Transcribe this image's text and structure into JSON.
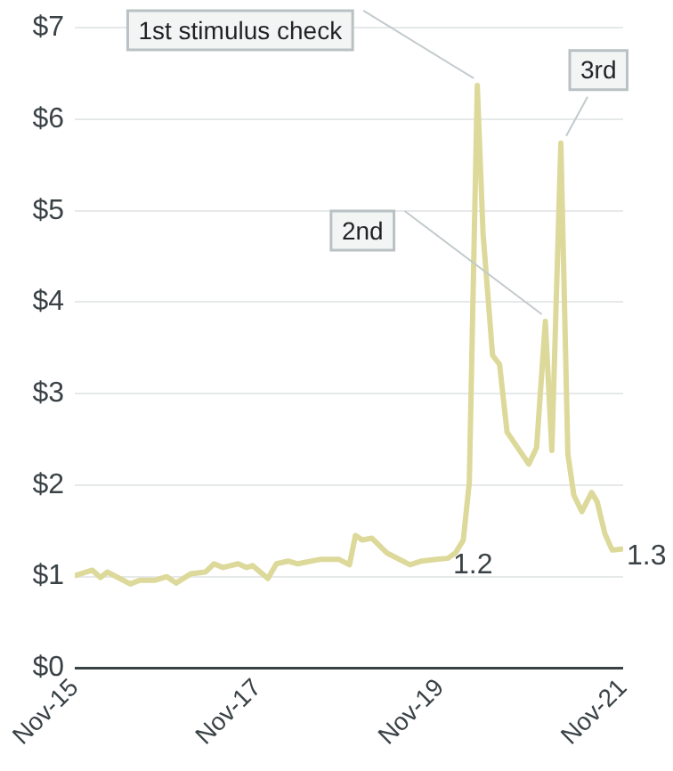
{
  "chart_data": {
    "type": "line",
    "x": [
      "2015-11-01",
      "2016-01-10",
      "2016-02-12",
      "2016-03-10",
      "2016-06-10",
      "2016-07-18",
      "2016-09-15",
      "2016-11-03",
      "2016-12-10",
      "2017-02-06",
      "2017-04-06",
      "2017-05-10",
      "2017-06-15",
      "2017-08-15",
      "2017-09-18",
      "2017-10-12",
      "2017-12-12",
      "2018-01-15",
      "2018-03-03",
      "2018-04-10",
      "2018-07-12",
      "2018-09-21",
      "2018-11-03",
      "2018-11-27",
      "2018-12-24",
      "2019-02-01",
      "2019-04-01",
      "2019-07-03",
      "2019-08-18",
      "2019-10-15",
      "2019-12-01",
      "2020-01-01",
      "2020-02-01",
      "2020-02-25",
      "2020-03-28",
      "2020-04-20",
      "2020-05-28",
      "2020-06-25",
      "2020-07-25",
      "2020-10-20",
      "2020-11-20",
      "2020-12-25",
      "2021-01-20",
      "2021-02-25",
      "2021-03-25",
      "2021-04-18",
      "2021-05-20",
      "2021-06-28",
      "2021-07-20",
      "2021-08-20",
      "2021-09-18",
      "2021-10-25"
    ],
    "series": [
      {
        "color": "#ddd99a",
        "values": [
          1.01,
          1.07,
          0.99,
          1.05,
          0.92,
          0.96,
          0.96,
          1.0,
          0.93,
          1.03,
          1.05,
          1.14,
          1.1,
          1.14,
          1.1,
          1.12,
          0.98,
          1.14,
          1.17,
          1.14,
          1.19,
          1.19,
          1.13,
          1.45,
          1.4,
          1.42,
          1.26,
          1.13,
          1.17,
          1.19,
          1.2,
          1.26,
          1.4,
          2.03,
          6.37,
          4.75,
          3.42,
          3.32,
          2.58,
          2.23,
          2.41,
          3.79,
          2.38,
          5.74,
          2.34,
          1.89,
          1.71,
          1.92,
          1.82,
          1.47,
          1.29,
          1.3
        ],
        "value_labels": [
          null,
          null,
          null,
          null,
          null,
          null,
          null,
          null,
          null,
          null,
          null,
          null,
          null,
          null,
          null,
          null,
          null,
          null,
          null,
          null,
          null,
          null,
          null,
          null,
          null,
          null,
          null,
          null,
          null,
          null,
          "1.2",
          null,
          null,
          null,
          null,
          null,
          null,
          null,
          null,
          null,
          null,
          null,
          null,
          null,
          null,
          null,
          null,
          null,
          null,
          null,
          null,
          "1.3"
        ]
      }
    ],
    "xlim": [
      "2015-11",
      "2021-11"
    ],
    "xticks": [
      {
        "value": "2015-11",
        "label": "Nov-15"
      },
      {
        "value": "2017-11",
        "label": "Nov-17"
      },
      {
        "value": "2019-11",
        "label": "Nov-19"
      },
      {
        "value": "2021-11",
        "label": "Nov-21"
      }
    ],
    "ylim": [
      0,
      7
    ],
    "yticks": [
      {
        "value": 0,
        "label": "$0"
      },
      {
        "value": 1,
        "label": "$1"
      },
      {
        "value": 2,
        "label": "$2"
      },
      {
        "value": 3,
        "label": "$3"
      },
      {
        "value": 4,
        "label": "$4"
      },
      {
        "value": 5,
        "label": "$5"
      },
      {
        "value": 6,
        "label": "$6"
      },
      {
        "value": 7,
        "label": "$7"
      }
    ],
    "grid": "y",
    "legend": false,
    "marker": "none",
    "line_style": "solid",
    "annotations": [
      {
        "text": "1st stimulus check",
        "x": "2020-03-28",
        "y": 6.37
      },
      {
        "text": "2nd",
        "x": "2020-12-25",
        "y": 3.79
      },
      {
        "text": "3rd",
        "x": "2021-02-25",
        "y": 5.74
      }
    ]
  }
}
